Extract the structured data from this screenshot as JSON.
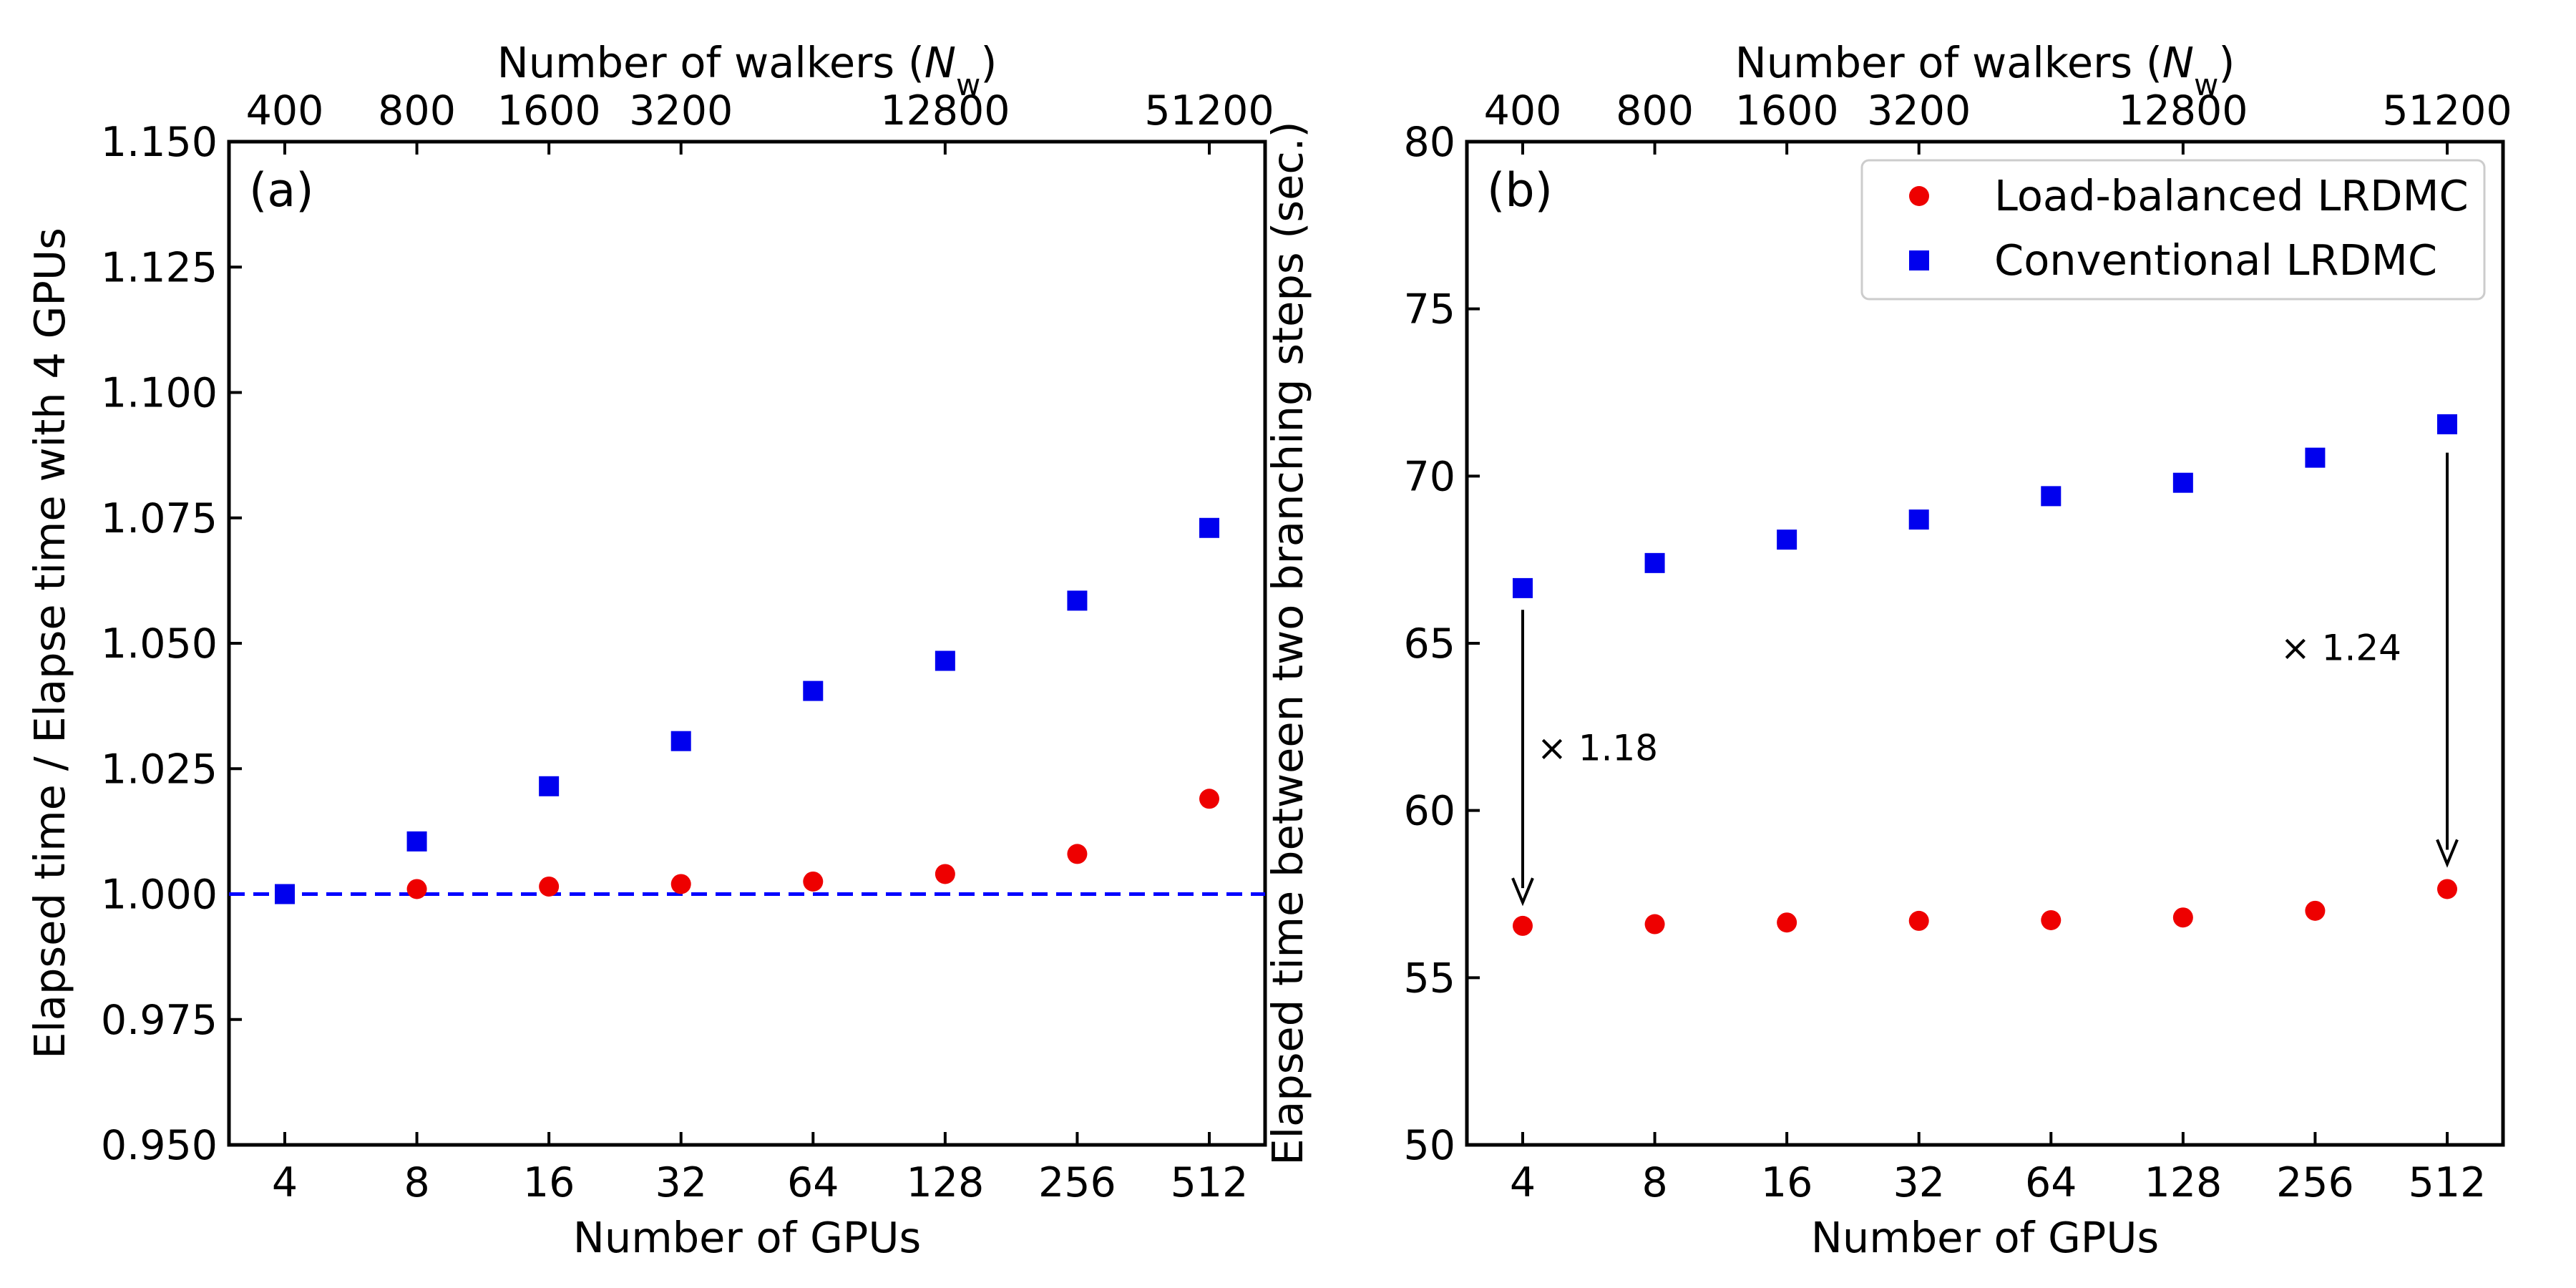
{
  "chart_data": [
    {
      "type": "scatter",
      "panel_label": "(a)",
      "xlabel": "Number of GPUs",
      "x2label": "Number of walkers (N_w)",
      "ylabel": "Elapsed time / Elapse time with 4 GPUs",
      "categories": [
        "4",
        "8",
        "16",
        "32",
        "64",
        "128",
        "256",
        "512"
      ],
      "top_ticks": [
        {
          "at": 0,
          "label": "400"
        },
        {
          "at": 1,
          "label": "800"
        },
        {
          "at": 2,
          "label": "1600"
        },
        {
          "at": 3,
          "label": "3200"
        },
        {
          "at": 5,
          "label": "12800"
        },
        {
          "at": 7,
          "label": "51200"
        }
      ],
      "ylim": [
        0.95,
        1.15
      ],
      "yticks": [
        "0.950",
        "0.975",
        "1.000",
        "1.025",
        "1.050",
        "1.075",
        "1.100",
        "1.125",
        "1.150"
      ],
      "reference_line": {
        "y": 1.0,
        "color": "#0000ff",
        "style": "dashed"
      },
      "series": [
        {
          "name": "Load-balanced LRDMC",
          "marker": "circle",
          "color": "#ee0000",
          "points": [
            [
              1,
              1.001
            ],
            [
              2,
              1.0015
            ],
            [
              3,
              1.002
            ],
            [
              4,
              1.0025
            ],
            [
              5,
              1.004
            ],
            [
              6,
              1.008
            ],
            [
              7,
              1.019
            ]
          ]
        },
        {
          "name": "Conventional LRDMC",
          "marker": "square",
          "color": "#0000ee",
          "points": [
            [
              0,
              1.0
            ],
            [
              1,
              1.0105
            ],
            [
              2,
              1.0215
            ],
            [
              3,
              1.0305
            ],
            [
              4,
              1.0405
            ],
            [
              5,
              1.0465
            ],
            [
              6,
              1.0585
            ],
            [
              7,
              1.073
            ]
          ]
        }
      ],
      "legend": null,
      "grid": false
    },
    {
      "type": "scatter",
      "panel_label": "(b)",
      "xlabel": "Number of GPUs",
      "x2label": "Number of walkers (N_w)",
      "ylabel": "Elapsed time between two branching steps (sec.)",
      "categories": [
        "4",
        "8",
        "16",
        "32",
        "64",
        "128",
        "256",
        "512"
      ],
      "top_ticks": [
        {
          "at": 0,
          "label": "400"
        },
        {
          "at": 1,
          "label": "800"
        },
        {
          "at": 2,
          "label": "1600"
        },
        {
          "at": 3,
          "label": "3200"
        },
        {
          "at": 5,
          "label": "12800"
        },
        {
          "at": 7,
          "label": "51200"
        }
      ],
      "ylim": [
        50,
        80
      ],
      "yticks": [
        "50",
        "55",
        "60",
        "65",
        "70",
        "75",
        "80"
      ],
      "series": [
        {
          "name": "Load-balanced LRDMC",
          "marker": "circle",
          "color": "#ee0000",
          "points": [
            [
              0,
              56.55
            ],
            [
              1,
              56.6
            ],
            [
              2,
              56.65
            ],
            [
              3,
              56.7
            ],
            [
              4,
              56.72
            ],
            [
              5,
              56.8
            ],
            [
              6,
              57.0
            ],
            [
              7,
              57.65
            ]
          ]
        },
        {
          "name": "Conventional LRDMC",
          "marker": "square",
          "color": "#0000ee",
          "points": [
            [
              0,
              66.65
            ],
            [
              1,
              67.4
            ],
            [
              2,
              68.1
            ],
            [
              3,
              68.7
            ],
            [
              4,
              69.4
            ],
            [
              5,
              69.8
            ],
            [
              6,
              70.55
            ],
            [
              7,
              71.55
            ]
          ]
        }
      ],
      "annotations": [
        {
          "text": "× 1.18",
          "arrow_x": 0,
          "from_y": 66.0,
          "to_y": 57.25
        },
        {
          "text": "× 1.24",
          "arrow_x": 7,
          "from_y": 70.7,
          "to_y": 58.4
        }
      ],
      "legend": {
        "position": "top-right",
        "entries": [
          "Load-balanced LRDMC",
          "Conventional LRDMC"
        ]
      },
      "grid": false
    }
  ]
}
